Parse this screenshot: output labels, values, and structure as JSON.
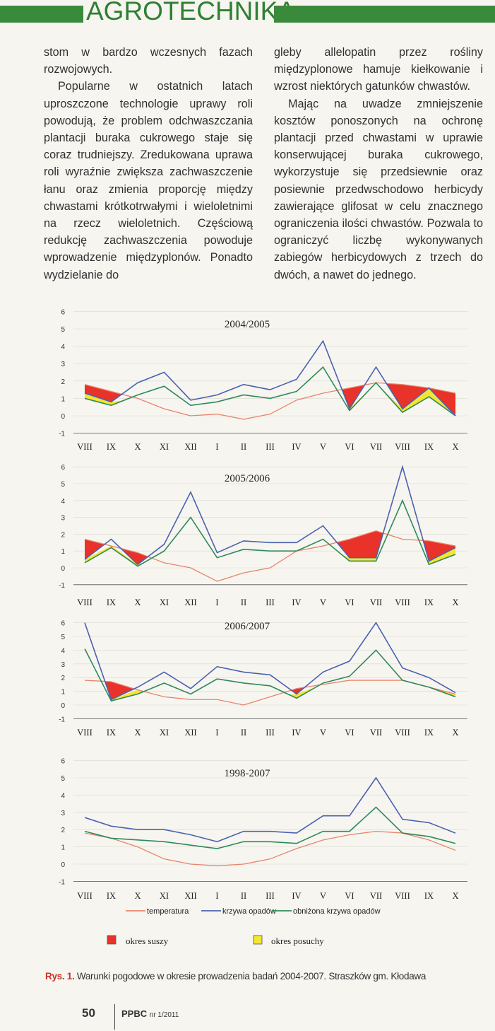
{
  "header": {
    "section_title": "AGROTECHNIKA"
  },
  "body_text": {
    "left": [
      "stom w bardzo wczesnych fazach rozwojowych.",
      "Popularne w ostatnich latach uproszczone technologie uprawy roli powodują, że problem odchwaszczania plantacji buraka cukrowego staje się coraz trudniejszy. Zredukowana uprawa roli wyraźnie zwiększa zachwaszczenie łanu oraz zmienia proporcję między chwastami krótkotrwałymi i wieloletnimi na rzecz wieloletnich. Częściową redukcję zachwaszczenia powoduje wprowadzenie międzyplonów. Ponadto wydzielanie do"
    ],
    "right": [
      "gleby allelopatin przez rośliny międzyplonowe hamuje kiełkowanie i wzrost niektórych gatunków chwastów.",
      "Mając na uwadze zmniejszenie kosztów ponoszonych na ochronę plantacji przed chwastami w uprawie konserwującej buraka cukrowego, wykorzystuje się przedsiewnie oraz posiewnie przedwschodowo herbicydy zawierające glifosat w celu znacznego ograniczenia ilości chwastów. Pozwala to ograniczyć liczbę wykonywanych zabiegów herbicydowych z trzech do dwóch, a nawet do jednego."
    ]
  },
  "chart_data": [
    {
      "type": "line",
      "title": "2004/2005",
      "categories": [
        "VIII",
        "IX",
        "X",
        "XI",
        "XII",
        "I",
        "II",
        "III",
        "IV",
        "V",
        "VI",
        "VII",
        "VIII",
        "IX",
        "X"
      ],
      "ylim": [
        -1,
        6
      ],
      "yticks": [
        "-1",
        "0",
        "1",
        "2",
        "3",
        "4",
        "5",
        "6"
      ],
      "series": [
        {
          "name": "temperatura",
          "values": [
            1.8,
            1.4,
            1.0,
            0.4,
            0.0,
            0.1,
            -0.2,
            0.1,
            0.9,
            1.3,
            1.6,
            1.9,
            1.8,
            1.6,
            1.3
          ]
        },
        {
          "name": "krzywa opadów",
          "values": [
            1.3,
            0.8,
            1.9,
            2.5,
            0.9,
            1.2,
            1.8,
            1.5,
            2.1,
            4.3,
            0.4,
            2.8,
            0.4,
            1.6,
            0.0
          ]
        },
        {
          "name": "obniżona krzywa opadów",
          "values": [
            1.0,
            0.6,
            1.2,
            1.7,
            0.6,
            0.8,
            1.2,
            1.0,
            1.4,
            2.8,
            0.3,
            1.9,
            0.2,
            1.1,
            0.0
          ]
        }
      ]
    },
    {
      "type": "line",
      "title": "2005/2006",
      "categories": [
        "VIII",
        "IX",
        "X",
        "XI",
        "XII",
        "I",
        "II",
        "III",
        "IV",
        "V",
        "VI",
        "VII",
        "VIII",
        "IX",
        "X"
      ],
      "ylim": [
        -1,
        6
      ],
      "yticks": [
        "-1",
        "0",
        "1",
        "2",
        "3",
        "4",
        "5",
        "6"
      ],
      "series": [
        {
          "name": "temperatura",
          "values": [
            1.7,
            1.3,
            0.9,
            0.3,
            0.0,
            -0.8,
            -0.3,
            0.0,
            1.0,
            1.3,
            1.7,
            2.2,
            1.7,
            1.6,
            1.3
          ]
        },
        {
          "name": "krzywa opadów",
          "values": [
            0.5,
            1.7,
            0.2,
            1.4,
            4.5,
            0.9,
            1.6,
            1.5,
            1.5,
            2.5,
            0.6,
            0.6,
            6.0,
            0.4,
            1.2
          ]
        },
        {
          "name": "obniżona krzywa opadów",
          "values": [
            0.3,
            1.2,
            0.1,
            1.0,
            3.0,
            0.6,
            1.1,
            1.0,
            1.0,
            1.7,
            0.4,
            0.4,
            4.0,
            0.2,
            0.8
          ]
        }
      ]
    },
    {
      "type": "line",
      "title": "2006/2007",
      "categories": [
        "VIII",
        "IX",
        "X",
        "XI",
        "XII",
        "I",
        "II",
        "III",
        "IV",
        "V",
        "VI",
        "VII",
        "VIII",
        "IX",
        "X"
      ],
      "ylim": [
        -1,
        6
      ],
      "yticks": [
        "-1",
        "0",
        "1",
        "2",
        "3",
        "4",
        "5",
        "6"
      ],
      "series": [
        {
          "name": "temperatura",
          "values": [
            1.8,
            1.7,
            1.1,
            0.6,
            0.4,
            0.4,
            0.0,
            0.6,
            1.2,
            1.5,
            1.8,
            1.8,
            1.8,
            1.3,
            0.8
          ]
        },
        {
          "name": "krzywa opadów",
          "values": [
            6.0,
            0.4,
            1.3,
            2.4,
            1.2,
            2.8,
            2.4,
            2.2,
            0.8,
            2.4,
            3.2,
            6.0,
            2.7,
            2.0,
            0.9
          ]
        },
        {
          "name": "obniżona krzywa opadów",
          "values": [
            4.1,
            0.3,
            0.8,
            1.6,
            0.8,
            1.9,
            1.6,
            1.4,
            0.5,
            1.6,
            2.1,
            4.0,
            1.8,
            1.3,
            0.6
          ]
        }
      ]
    },
    {
      "type": "line",
      "title": "1998-2007",
      "categories": [
        "VIII",
        "IX",
        "X",
        "XI",
        "XII",
        "I",
        "II",
        "III",
        "IV",
        "V",
        "VI",
        "VII",
        "VIII",
        "IX",
        "X"
      ],
      "ylim": [
        -1,
        6
      ],
      "yticks": [
        "-1",
        "0",
        "1",
        "2",
        "3",
        "4",
        "5",
        "6"
      ],
      "series": [
        {
          "name": "temperatura",
          "values": [
            1.8,
            1.5,
            1.0,
            0.3,
            0.0,
            -0.1,
            0.0,
            0.3,
            0.9,
            1.4,
            1.7,
            1.9,
            1.8,
            1.4,
            0.8
          ]
        },
        {
          "name": "krzywa opadów",
          "values": [
            2.7,
            2.2,
            2.0,
            2.0,
            1.7,
            1.3,
            1.9,
            1.9,
            1.8,
            2.8,
            2.8,
            5.0,
            2.6,
            2.4,
            1.8
          ]
        },
        {
          "name": "obniżona krzywa opadów",
          "values": [
            1.9,
            1.5,
            1.4,
            1.3,
            1.1,
            0.9,
            1.3,
            1.3,
            1.2,
            1.9,
            1.9,
            3.3,
            1.8,
            1.6,
            1.2
          ]
        }
      ]
    }
  ],
  "legend": {
    "temperatura": "temperatura",
    "krzywa_opadow": "krzywa opadów",
    "obnizona": "obniżona krzywa opadów",
    "okres_suszy": "okres suszy",
    "okres_posuchy": "okres posuchy"
  },
  "colors": {
    "temperature": "#e8846a",
    "rain": "#4a62b0",
    "reduced_rain": "#2e8a5c",
    "drought": "#e8322a",
    "dry": "#f4e532",
    "brand_green": "#3a8a3c"
  },
  "caption": {
    "label": "Rys. 1.",
    "text": "Warunki pogodowe w okresie prowadzenia badań 2004-2007. Straszków gm. Kłodawa"
  },
  "footer": {
    "page_number": "50",
    "publication": "PPBC",
    "issue": "nr 1/2011"
  }
}
